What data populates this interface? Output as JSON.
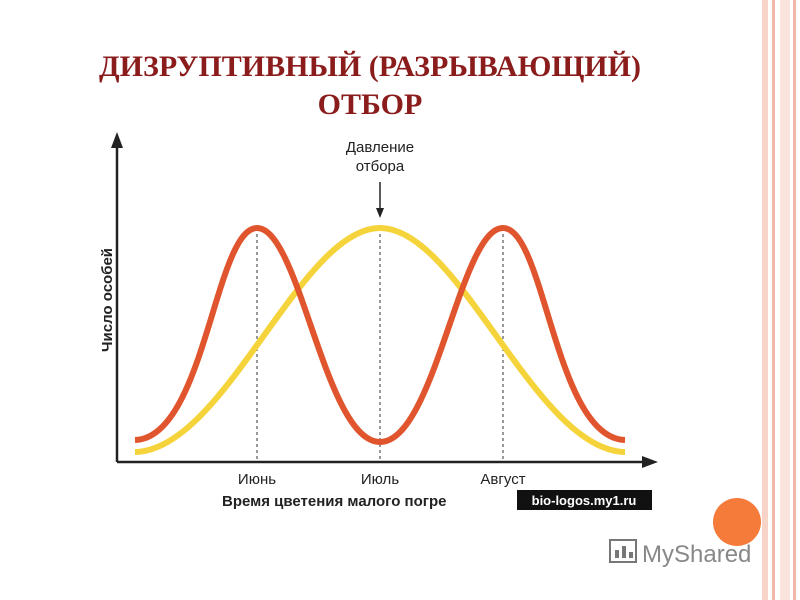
{
  "title": {
    "line1": "ДИЗРУПТИВНЫЙ (РАЗРЫВАЮЩИЙ)",
    "line2": "ОТБОР"
  },
  "diagram": {
    "pressure_label": {
      "line1": "Давление",
      "line2": "отбора"
    },
    "y_axis_label": "Число особей",
    "x_labels": [
      "Июнь",
      "Июль",
      "Август"
    ],
    "x_axis_label": "Время цветения малого погре",
    "watermark": "bio-logos.my1.ru"
  },
  "logo": "MyShared"
}
